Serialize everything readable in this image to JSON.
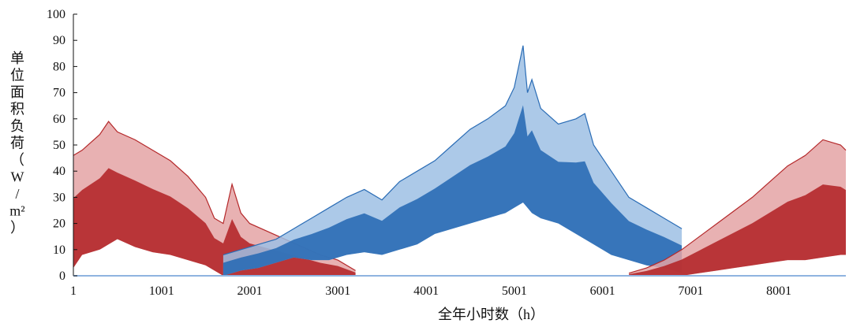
{
  "chart_data": {
    "type": "area",
    "xlabel": "全年小时数（h）",
    "ylabel_chars": [
      "单",
      "位",
      "面",
      "积",
      "负",
      "荷",
      "（",
      "W",
      "/",
      "m²",
      "）"
    ],
    "xlim": [
      1,
      8760
    ],
    "ylim": [
      0,
      100
    ],
    "yticks": [
      0,
      10,
      20,
      30,
      40,
      50,
      60,
      70,
      80,
      90,
      100
    ],
    "xticks": [
      1,
      1001,
      2001,
      3001,
      4001,
      5001,
      6001,
      7001,
      8001
    ],
    "grid": false,
    "legend": "none",
    "colors": {
      "heating_dark": "#b4282a",
      "heating_light": "#e4a3a4",
      "cooling_dark": "#2a6cb5",
      "cooling_light": "#9ec0e4",
      "baseline": "#8fb4e0"
    },
    "series": [
      {
        "x": [
          1,
          100,
          300,
          400,
          500,
          700,
          900,
          1100,
          1300,
          1500,
          1600,
          1700,
          1800,
          1900,
          2000,
          2200,
          2400,
          2600,
          2800,
          3000,
          3200
        ],
        "upper": [
          46,
          48,
          54,
          59,
          55,
          52,
          48,
          44,
          38,
          30,
          22,
          20,
          35,
          24,
          20,
          17,
          14,
          11,
          8,
          6,
          2
        ],
        "lower": [
          3,
          8,
          10,
          12,
          14,
          11,
          9,
          8,
          6,
          4,
          2,
          0,
          0,
          0,
          0,
          0,
          0,
          0,
          0,
          0,
          0
        ]
      },
      {
        "x": [
          1700,
          1900,
          2100,
          2300,
          2500,
          2700,
          2900,
          3100,
          3300,
          3500,
          3700,
          3900,
          4100,
          4300,
          4500,
          4700,
          4900,
          5000,
          5100,
          5150,
          5200,
          5300,
          5500,
          5700,
          5800,
          5900,
          6100,
          6300,
          6500,
          6700,
          6900
        ],
        "upper": [
          8,
          10,
          12,
          14,
          18,
          22,
          26,
          30,
          33,
          29,
          36,
          40,
          44,
          50,
          56,
          60,
          65,
          72,
          88,
          70,
          75,
          64,
          58,
          60,
          62,
          50,
          40,
          30,
          26,
          22,
          18
        ],
        "lower": [
          0,
          2,
          3,
          5,
          7,
          6,
          6,
          8,
          9,
          8,
          10,
          12,
          16,
          18,
          20,
          22,
          24,
          26,
          28,
          26,
          24,
          22,
          20,
          16,
          14,
          12,
          8,
          6,
          4,
          3,
          1
        ]
      },
      {
        "x": [
          6300,
          6500,
          6700,
          6900,
          7100,
          7300,
          7500,
          7700,
          7900,
          8100,
          8300,
          8500,
          8700,
          8760
        ],
        "upper": [
          1,
          3,
          6,
          10,
          15,
          20,
          25,
          30,
          36,
          42,
          46,
          52,
          50,
          48
        ],
        "lower": [
          0,
          0,
          0,
          0,
          1,
          2,
          3,
          4,
          5,
          6,
          6,
          7,
          8,
          8
        ]
      }
    ]
  }
}
